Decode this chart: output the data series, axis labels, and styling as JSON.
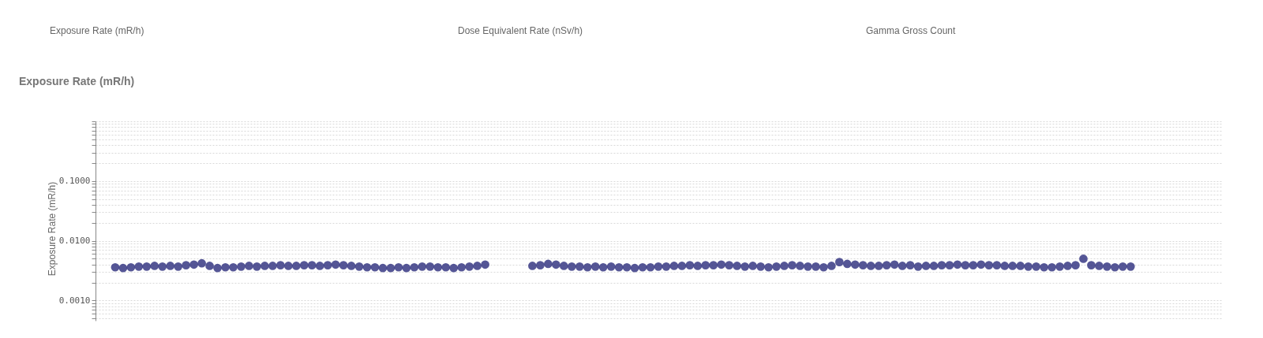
{
  "chart_data": {
    "type": "scatter",
    "title": "Exposure Rate (mR/h)",
    "ylabel": "Exposure Rate (mR/h)",
    "annotations": [
      "Exposure Rate (mR/h)",
      "Dose Equivalent Rate (nSv/h)",
      "Gamma Gross Count"
    ],
    "categories": [
      null,
      null,
      null,
      null,
      null,
      null,
      null,
      null,
      null,
      null,
      null,
      null,
      null,
      null,
      null,
      null,
      null,
      null,
      null,
      null,
      null,
      null,
      null,
      null,
      null,
      null,
      null,
      null,
      null,
      null,
      null,
      null,
      null,
      null,
      null,
      null,
      null,
      null,
      null,
      null,
      null,
      null,
      null,
      null,
      null,
      null,
      null,
      null,
      null,
      null,
      null,
      null,
      null,
      null,
      null,
      null,
      null,
      null,
      null,
      null,
      null,
      null,
      null,
      null,
      null,
      null,
      null,
      null,
      null,
      null,
      null,
      null,
      null,
      null,
      null,
      null,
      null,
      null,
      null,
      null,
      null,
      null,
      null,
      null,
      null,
      null,
      null,
      null,
      null,
      null,
      null,
      null,
      null,
      null,
      null,
      null,
      null,
      null,
      null,
      null,
      null,
      null,
      null,
      null,
      null,
      null,
      null,
      null,
      null,
      null,
      null,
      null,
      null,
      null,
      null,
      null,
      null,
      null,
      null,
      null,
      null,
      null,
      null,
      null,
      null,
      null,
      null,
      null,
      null,
      null,
      null,
      null,
      null,
      null,
      null,
      null,
      null,
      null,
      null,
      null,
      null,
      null,
      null
    ],
    "series": [
      {
        "color": "#2b2c7c",
        "values": [
          null,
          null,
          0.0036,
          0.0035,
          0.0036,
          0.0037,
          0.0037,
          0.0038,
          0.0037,
          0.0038,
          0.0037,
          0.0039,
          0.004,
          0.0042,
          0.0038,
          0.0035,
          0.0036,
          0.0036,
          0.0037,
          0.0038,
          0.0037,
          0.0038,
          0.0038,
          0.0039,
          0.0038,
          0.0038,
          0.0039,
          0.0039,
          0.0038,
          0.0039,
          0.004,
          0.0039,
          0.0038,
          0.0037,
          0.0036,
          0.0036,
          0.0035,
          0.0035,
          0.0036,
          0.0035,
          0.0036,
          0.0037,
          0.0037,
          0.0036,
          0.0036,
          0.0035,
          0.0036,
          0.0037,
          0.0038,
          0.004,
          null,
          null,
          null,
          null,
          null,
          0.0038,
          0.0039,
          0.0041,
          0.004,
          0.0038,
          0.0037,
          0.0037,
          0.0036,
          0.0037,
          0.0036,
          0.0037,
          0.0036,
          0.0036,
          0.0035,
          0.0036,
          0.0036,
          0.0037,
          0.0037,
          0.0038,
          0.0038,
          0.0039,
          0.0038,
          0.0039,
          0.0039,
          0.004,
          0.0039,
          0.0038,
          0.0037,
          0.0038,
          0.0037,
          0.0036,
          0.0037,
          0.0038,
          0.0039,
          0.0038,
          0.0037,
          0.0037,
          0.0036,
          0.0038,
          0.0044,
          0.0041,
          0.004,
          0.0039,
          0.0038,
          0.0038,
          0.0039,
          0.004,
          0.0038,
          0.0039,
          0.0037,
          0.0038,
          0.0038,
          0.0039,
          0.0039,
          0.004,
          0.0039,
          0.0039,
          0.004,
          0.0039,
          0.0039,
          0.0038,
          0.0038,
          0.0038,
          0.0037,
          0.0037,
          0.0036,
          0.0036,
          0.0037,
          0.0038,
          0.0039,
          0.005,
          0.0039,
          0.0038,
          0.0037,
          0.0036,
          0.0037,
          0.0037,
          null,
          null,
          null,
          null,
          null,
          null,
          null,
          null,
          null,
          null,
          null
        ]
      }
    ],
    "log": "y",
    "ylim": [
      0.00046,
      1
    ],
    "yticks": [
      {
        "value": 0.0005,
        "label": null
      },
      {
        "value": 0.0006,
        "label": null
      },
      {
        "value": 0.0007,
        "label": null
      },
      {
        "value": 0.0008,
        "label": null
      },
      {
        "value": 0.0009,
        "label": null
      },
      {
        "value": 0.001,
        "label": "0.0010"
      },
      {
        "value": 0.002,
        "label": null
      },
      {
        "value": 0.003,
        "label": null
      },
      {
        "value": 0.004,
        "label": null
      },
      {
        "value": 0.005,
        "label": null
      },
      {
        "value": 0.006,
        "label": null
      },
      {
        "value": 0.007,
        "label": null
      },
      {
        "value": 0.008,
        "label": null
      },
      {
        "value": 0.009,
        "label": null
      },
      {
        "value": 0.01,
        "label": "0.0100"
      },
      {
        "value": 0.02,
        "label": null
      },
      {
        "value": 0.03,
        "label": null
      },
      {
        "value": 0.04,
        "label": null
      },
      {
        "value": 0.05,
        "label": null
      },
      {
        "value": 0.06,
        "label": null
      },
      {
        "value": 0.07,
        "label": null
      },
      {
        "value": 0.08,
        "label": null
      },
      {
        "value": 0.09,
        "label": null
      },
      {
        "value": 0.1,
        "label": "0.1000"
      },
      {
        "value": 0.2,
        "label": null
      },
      {
        "value": 0.3,
        "label": null
      },
      {
        "value": 0.4,
        "label": null
      },
      {
        "value": 0.5,
        "label": null
      },
      {
        "value": 0.6,
        "label": null
      },
      {
        "value": 0.7,
        "label": null
      },
      {
        "value": 0.8,
        "label": null
      },
      {
        "value": 0.9,
        "label": null
      },
      {
        "value": 1,
        "label": null
      }
    ],
    "grid": "y",
    "tick_labels": "y",
    "marker": "circle"
  }
}
